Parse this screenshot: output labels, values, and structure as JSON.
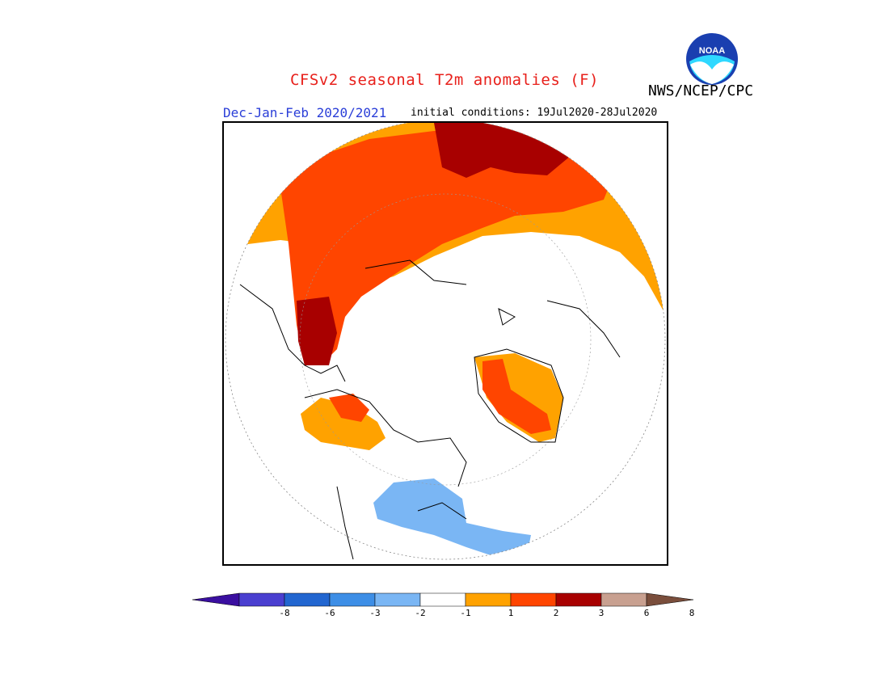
{
  "header": {
    "title": "CFSv2 seasonal T2m anomalies (F)",
    "agency": "NWS/NCEP/CPC",
    "season": "Dec-Jan-Feb 2020/2021",
    "initial_conditions": "initial conditions: 19Jul2020-28Jul2020"
  },
  "logo": {
    "text": "NOAA"
  },
  "colorbar": {
    "labels": [
      "-8",
      "-6",
      "-3",
      "-2",
      "-1",
      "1",
      "2",
      "3",
      "6",
      "8"
    ],
    "colors": [
      "#3a0fa0",
      "#4a3fd0",
      "#2266d0",
      "#3d8ee6",
      "#7ab6f4",
      "#ffffff",
      "#ffa200",
      "#ff4500",
      "#a80000",
      "#c8a090",
      "#7a4e3c"
    ]
  },
  "map": {
    "projection": "north polar stereographic",
    "colors": {
      "warm1": "#ffa200",
      "warm2": "#ff4500",
      "warm3": "#a80000",
      "cool1": "#7ab6f4"
    }
  }
}
